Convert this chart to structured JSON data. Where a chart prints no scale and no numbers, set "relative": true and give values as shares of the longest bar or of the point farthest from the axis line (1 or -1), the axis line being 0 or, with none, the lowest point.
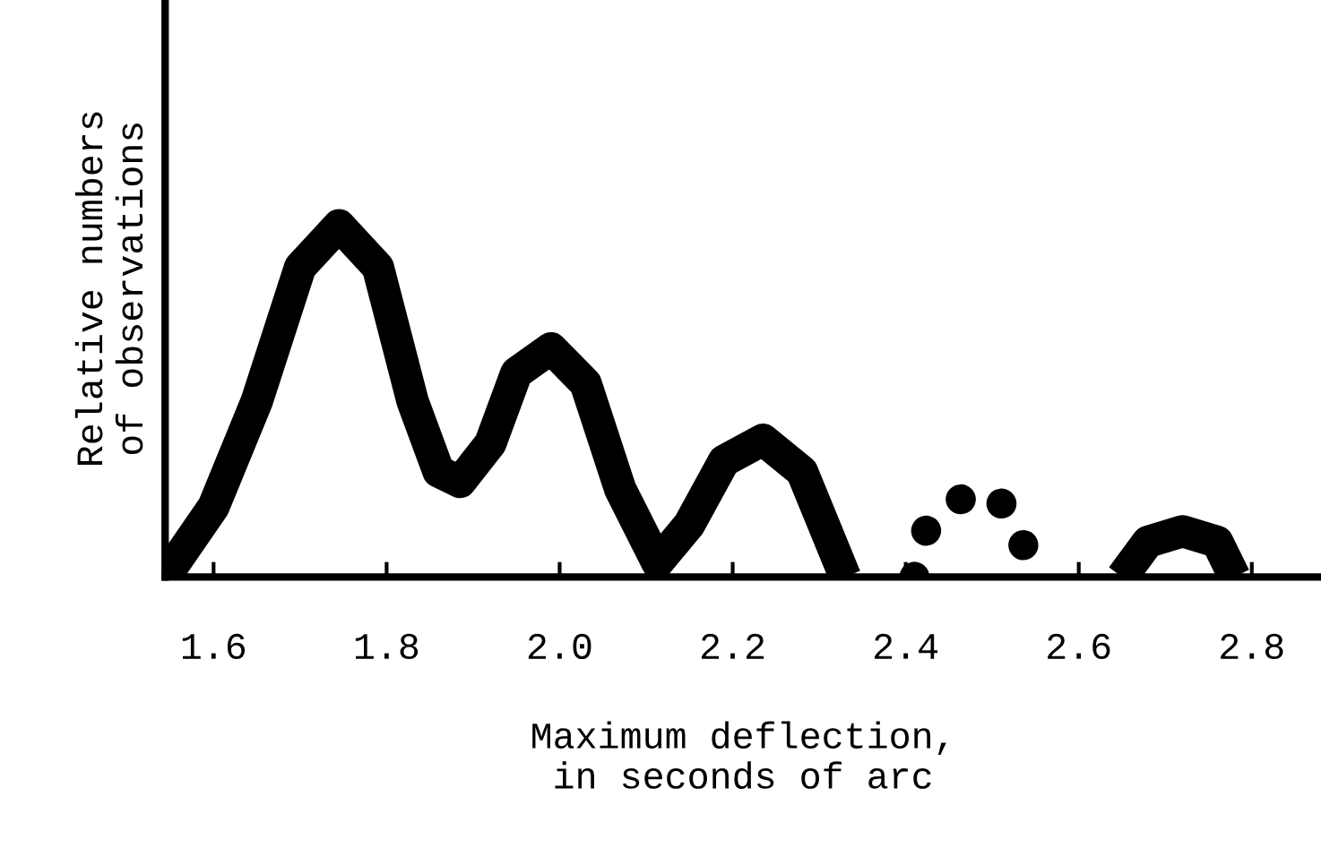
{
  "chart_data": {
    "type": "line",
    "relative": true,
    "xlabel": "Maximum deflection,\nin seconds of arc",
    "ylabel": "Relative numbers\nof observations",
    "xlim": [
      1.544,
      2.88
    ],
    "xticks": [
      {
        "value": 1.6,
        "label": "1.6"
      },
      {
        "value": 1.8,
        "label": "1.8"
      },
      {
        "value": 2.0,
        "label": "2.0"
      },
      {
        "value": 2.2,
        "label": "2.2"
      },
      {
        "value": 2.4,
        "label": "2.4"
      },
      {
        "value": 2.6,
        "label": "2.6"
      },
      {
        "value": 2.8,
        "label": "2.8"
      }
    ],
    "tick_labels": "x",
    "grid": false,
    "legend": false,
    "series": [
      {
        "color": "#000000",
        "line_style": "solid",
        "x": [
          1.544,
          1.6,
          1.65,
          1.7,
          1.745,
          1.79,
          1.83,
          1.86,
          1.885,
          1.92,
          1.95,
          1.99,
          2.03,
          2.07,
          2.113,
          2.15,
          2.19,
          2.235,
          2.28,
          2.33
        ],
        "values": [
          0,
          0.2,
          0.5,
          0.88,
          1.0,
          0.88,
          0.5,
          0.3,
          0.27,
          0.38,
          0.58,
          0.65,
          0.55,
          0.25,
          0.04,
          0.15,
          0.33,
          0.39,
          0.3,
          0
        ]
      },
      {
        "color": "#000000",
        "line_style": "dotted",
        "x": [
          2.41,
          2.42,
          2.445,
          2.49,
          2.52,
          2.535,
          2.545
        ],
        "values": [
          0,
          0.12,
          0.2,
          0.25,
          0.19,
          0.1,
          0
        ]
      },
      {
        "color": "#000000",
        "line_style": "solid",
        "x": [
          2.65,
          2.68,
          2.72,
          2.76,
          2.78
        ],
        "values": [
          0,
          0.1,
          0.13,
          0.1,
          0
        ]
      }
    ]
  }
}
